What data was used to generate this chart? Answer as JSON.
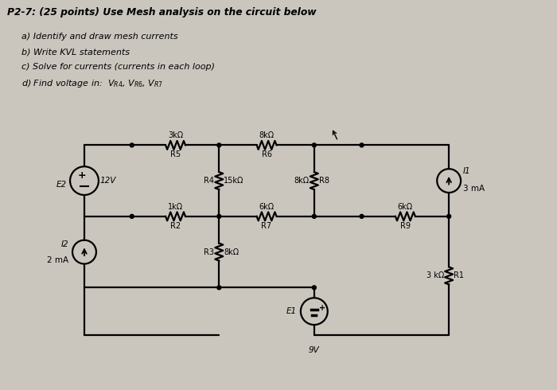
{
  "title": "P2-7: (25 points) Use Mesh analysis on the circuit below",
  "subtitles": [
    "a) Identify and draw mesh currents",
    "b) Write KVL statements",
    "c) Solve for currents (currents in each loop)",
    "d) Find voltage in:  $V_{R4}$, $V_{R6}$, $V_{R7}$"
  ],
  "bg": "#cac6be",
  "lw": 1.6
}
